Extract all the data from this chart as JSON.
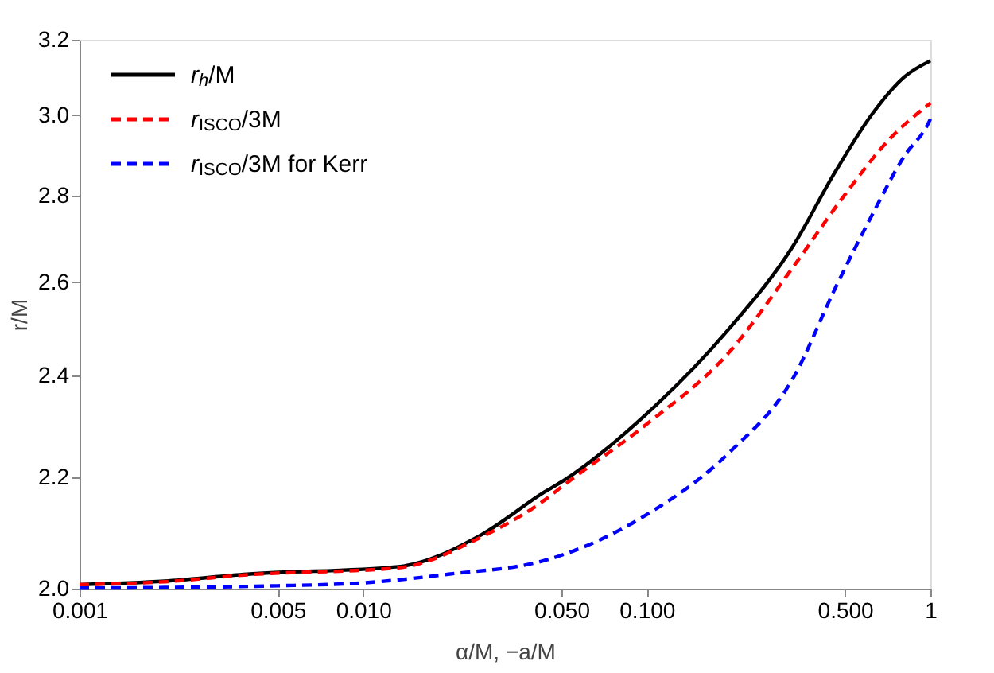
{
  "chart_data": {
    "type": "line",
    "xlabel": "α/M, −a/M",
    "ylabel": "r/M",
    "log": "xy",
    "grid": false,
    "legend": "top left",
    "marker": "none",
    "xlim": [
      0.001,
      1
    ],
    "xticks": [
      0.001,
      {
        "value": 0.005,
        "label": "0.005"
      },
      {
        "value": 0.01,
        "label": "0.010"
      },
      {
        "value": 0.05,
        "label": "0.050"
      },
      {
        "value": 0.1,
        "label": "0.100"
      },
      {
        "value": 0.5,
        "label": "0.500"
      },
      1
    ],
    "ylim": [
      2.0,
      3.2
    ],
    "yticks": [
      {
        "value": 2.0,
        "label": "2.0"
      },
      2.2,
      2.4,
      2.6,
      2.8,
      {
        "value": 3.0,
        "label": "3.0"
      },
      3.2
    ],
    "series": [
      {
        "name": "r$_{h}$/M",
        "color": "#000000",
        "line_style": "solid",
        "x": [
          0.001,
          0.002,
          0.0039,
          0.0133,
          0.026,
          0.0437,
          0.0509,
          0.0986,
          0.196,
          0.328,
          0.462,
          0.625,
          0.81,
          1
        ],
        "values": [
          2.007,
          2.013,
          2.025,
          2.038,
          2.094,
          2.173,
          2.194,
          2.32,
          2.5,
          2.682,
          2.858,
          3.004,
          3.1,
          3.143
        ]
      },
      {
        "name": "r$_{ISCO}$/3M",
        "color": "#ff0000",
        "line_style": "dashed",
        "x": [
          0.001,
          0.002,
          0.0039,
          0.0133,
          0.026,
          0.0437,
          0.0509,
          0.0986,
          0.196,
          0.328,
          0.504,
          0.711,
          1
        ],
        "values": [
          2.007,
          2.012,
          2.024,
          2.036,
          2.09,
          2.158,
          2.185,
          2.3,
          2.45,
          2.634,
          2.806,
          2.936,
          3.031
        ]
      },
      {
        "name": "r$_{ISCO}$/3M for Kerr",
        "color": "#0000ff",
        "line_style": "dashed",
        "x": [
          0.001,
          0.002,
          0.005,
          0.01,
          0.02,
          0.0437,
          0.0986,
          0.196,
          0.328,
          0.462,
          0.625,
          0.81,
          0.98,
          1
        ],
        "values": [
          2.001,
          2.002,
          2.005,
          2.01,
          2.025,
          2.049,
          2.129,
          2.248,
          2.395,
          2.587,
          2.756,
          2.897,
          2.977,
          2.99
        ]
      }
    ]
  }
}
